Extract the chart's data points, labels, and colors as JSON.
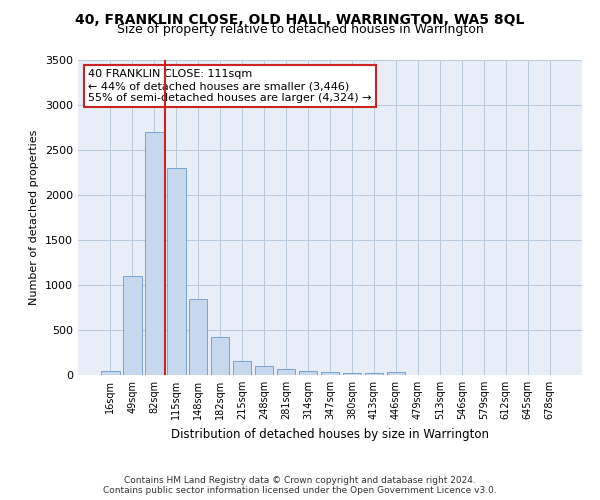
{
  "title": "40, FRANKLIN CLOSE, OLD HALL, WARRINGTON, WA5 8QL",
  "subtitle": "Size of property relative to detached houses in Warrington",
  "xlabel": "Distribution of detached houses by size in Warrington",
  "ylabel": "Number of detached properties",
  "categories": [
    "16sqm",
    "49sqm",
    "82sqm",
    "115sqm",
    "148sqm",
    "182sqm",
    "215sqm",
    "248sqm",
    "281sqm",
    "314sqm",
    "347sqm",
    "380sqm",
    "413sqm",
    "446sqm",
    "479sqm",
    "513sqm",
    "546sqm",
    "579sqm",
    "612sqm",
    "645sqm",
    "678sqm"
  ],
  "values": [
    50,
    1100,
    2700,
    2300,
    850,
    420,
    160,
    100,
    70,
    50,
    35,
    25,
    20,
    30,
    5,
    2,
    1,
    0,
    0,
    0,
    0
  ],
  "bar_color": "#c5d8ee",
  "bar_edge_color": "#6699cc",
  "background_color": "#e8eef7",
  "vline_x": 2.5,
  "vline_color": "#cc2222",
  "annotation_text": "40 FRANKLIN CLOSE: 111sqm\n← 44% of detached houses are smaller (3,446)\n55% of semi-detached houses are larger (4,324) →",
  "annotation_box_color": "#ffffff",
  "annotation_box_edge_color": "#cc2222",
  "ylim": [
    0,
    3500
  ],
  "yticks": [
    0,
    500,
    1000,
    1500,
    2000,
    2500,
    3000,
    3500
  ],
  "footer_line1": "Contains HM Land Registry data © Crown copyright and database right 2024.",
  "footer_line2": "Contains public sector information licensed under the Open Government Licence v3.0."
}
